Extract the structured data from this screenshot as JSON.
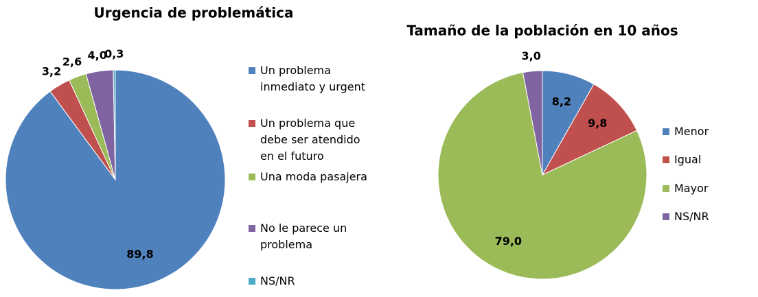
{
  "chart_data": [
    {
      "type": "pie",
      "title": "Urgencia de problemática",
      "categories": [
        "Un problema inmediato y urgent",
        "Un problema que debe ser atendido en el futuro",
        "Una moda pasajera",
        "No le parece un problema",
        "NS/NR"
      ],
      "values": [
        89.8,
        3.2,
        2.6,
        4.0,
        0.3
      ],
      "value_labels": [
        "89,8",
        "3,2",
        "2,6",
        "4,0",
        "0,3"
      ],
      "colors": [
        "#4f81bd",
        "#c0504d",
        "#9bbb59",
        "#8064a2",
        "#4bacc6"
      ],
      "legend": "right"
    },
    {
      "type": "pie",
      "title": "Tamaño de la población en 10 años",
      "categories": [
        "Menor",
        "Igual",
        "Mayor",
        "NS/NR"
      ],
      "values": [
        8.2,
        9.8,
        79.0,
        3.0
      ],
      "value_labels": [
        "8,2",
        "9,8",
        "79,0",
        "3,0"
      ],
      "colors": [
        "#4f81bd",
        "#c0504d",
        "#9bbb59",
        "#8064a2"
      ],
      "legend": "right"
    }
  ]
}
